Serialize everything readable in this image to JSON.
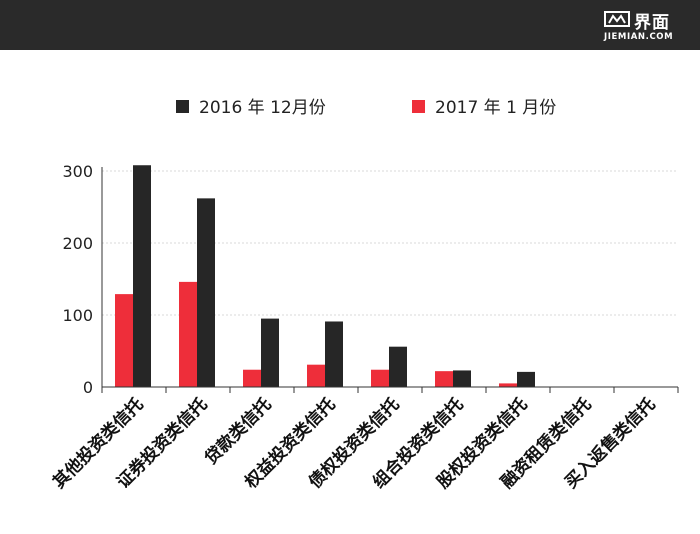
{
  "header": {
    "brand_cn": "界面",
    "brand_en": "JIEMIAN.COM"
  },
  "chart_data": {
    "type": "bar",
    "categories": [
      "其他投资类信托",
      "证券投资类信托",
      "贷款类信托",
      "权益投资类信托",
      "债权投资类信托",
      "组合投资类信托",
      "股权投资类信托",
      "融资租赁类信托",
      "买入返售类信托"
    ],
    "series": [
      {
        "name": "2017 年 1 月份",
        "color": "#ee2e3a",
        "values": [
          129,
          146,
          24,
          31,
          24,
          22,
          5,
          0,
          0
        ]
      },
      {
        "name": "2016 年 12月份",
        "color": "#262626",
        "values": [
          308,
          262,
          95,
          91,
          56,
          23,
          21,
          0,
          0
        ]
      }
    ],
    "legend_order": [
      1,
      0
    ],
    "ylim": [
      0,
      300
    ],
    "yticks": [
      0,
      100,
      200,
      300
    ],
    "grid": true,
    "legend_position": "top"
  }
}
